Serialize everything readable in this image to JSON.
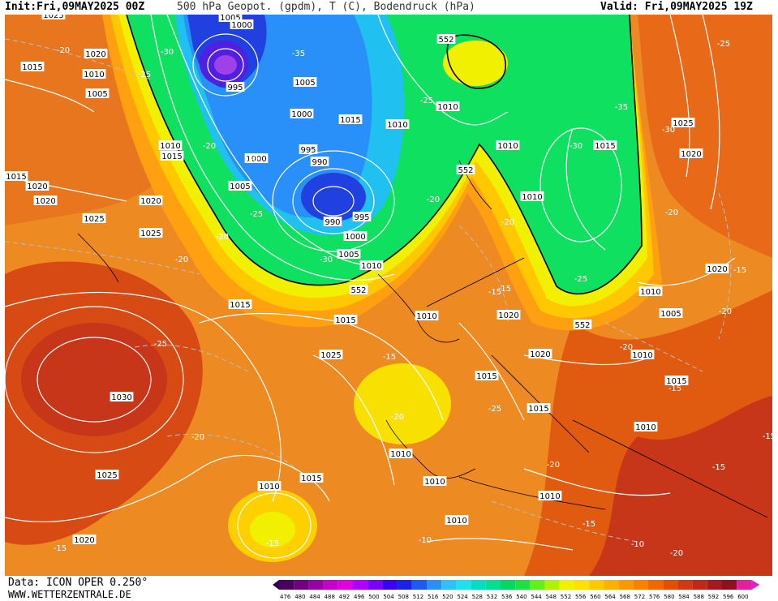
{
  "header": {
    "init_label": "Init:",
    "init_value": "Fri,09MAY2025 00Z",
    "title": "500 hPa Geopot. (gpdm), T (C), Bodendruck (hPa)",
    "valid_label": "Valid:",
    "valid_value": "Fri,09MAY2025 19Z"
  },
  "footer": {
    "data_label": "Data: ICON OPER 0.250°",
    "site": "WWW.WETTERZENTRALE.DE"
  },
  "legend": {
    "values": [
      "476",
      "480",
      "484",
      "488",
      "492",
      "496",
      "500",
      "504",
      "508",
      "512",
      "516",
      "520",
      "524",
      "528",
      "532",
      "536",
      "540",
      "544",
      "548",
      "552",
      "556",
      "560",
      "564",
      "568",
      "572",
      "576",
      "580",
      "584",
      "588",
      "592",
      "596",
      "600"
    ],
    "colors": [
      "#4a0060",
      "#700080",
      "#9a00a8",
      "#c400cc",
      "#dc00e0",
      "#b000ff",
      "#7a00ff",
      "#3c00f0",
      "#1a22e8",
      "#1e5cf0",
      "#2890f8",
      "#30c0ff",
      "#20e0f0",
      "#00e0c0",
      "#00e090",
      "#00d860",
      "#20e040",
      "#60f020",
      "#b0f000",
      "#f0f000",
      "#ffe000",
      "#ffc800",
      "#ffb000",
      "#ff9800",
      "#ff8000",
      "#f06800",
      "#e05000",
      "#d03a10",
      "#c02818",
      "#a81820",
      "#901020",
      "#e020a0"
    ],
    "accent_left": "#330044",
    "accent_right": "#e020c0"
  },
  "map": {
    "pressure_labels": [
      "1025",
      "1005",
      "1000",
      "1020",
      "1015",
      "1010",
      "1005",
      "995",
      "1005",
      "1000",
      "995",
      "990",
      "1005",
      "1010",
      "1000",
      "1015",
      "1020",
      "1025",
      "990",
      "995",
      "1000",
      "1005",
      "1010",
      "1015",
      "1020",
      "1025",
      "1030",
      "1025",
      "1020",
      "1010",
      "1015",
      "1010",
      "1010",
      "1015",
      "1020",
      "1015",
      "1020",
      "1015",
      "1015",
      "1010",
      "1010",
      "1010",
      "1025",
      "1010",
      "1015",
      "1020",
      "1005",
      "1010",
      "1025",
      "1020",
      "1015",
      "1010",
      "1010",
      "1010",
      "1010",
      "1015",
      "1010",
      "1025",
      "1020"
    ],
    "temperature_labels": [
      "-20",
      "-30",
      "-25",
      "-35",
      "-30",
      "-25",
      "-20",
      "-30",
      "-20",
      "-25",
      "-20",
      "-25",
      "-20",
      "-15",
      "-20",
      "-25",
      "-30",
      "-35",
      "-30",
      "-25",
      "-20",
      "-25",
      "-20",
      "-15",
      "-20",
      "-25",
      "-20",
      "-15",
      "-20",
      "-15",
      "-20",
      "-15",
      "-15",
      "-10",
      "-15",
      "-10",
      "-15",
      "-10",
      "-20",
      "-15",
      "-15"
    ],
    "geopotential_labels": [
      "552",
      "552",
      "552",
      "552"
    ],
    "colors": {
      "deep_blue": "#2a30e0",
      "blue": "#2890f8",
      "cyan": "#20c8f0",
      "green": "#10e060",
      "light_green": "#60f020",
      "yellow": "#f0f000",
      "gold": "#ffc800",
      "orange": "#ff9800",
      "dark_orange": "#f06800",
      "red_orange": "#e05000",
      "red": "#c02818"
    }
  }
}
